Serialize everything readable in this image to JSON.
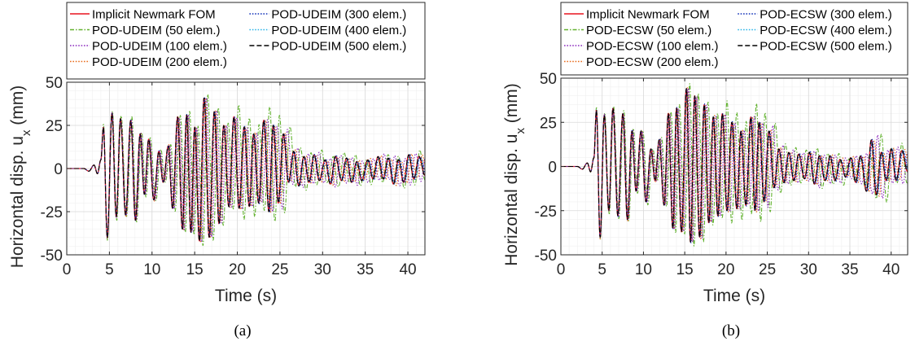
{
  "figure": {
    "ylabel_main": "Horizontal disp. u",
    "ylabel_sub": "x",
    "ylabel_unit": " (mm)",
    "xlabel": "Time (s)",
    "captions": [
      "(a)",
      "(b)"
    ]
  },
  "chart_data": [
    {
      "type": "line",
      "caption": "(a)",
      "xlabel": "Time (s)",
      "ylabel": "Horizontal disp. u_x (mm)",
      "xlim": [
        0,
        42
      ],
      "ylim": [
        -50,
        50
      ],
      "xticks": [
        "0",
        "5",
        "10",
        "15",
        "20",
        "25",
        "30",
        "35",
        "40"
      ],
      "yticks": [
        "50",
        "25",
        "0",
        "-25",
        "-50"
      ],
      "grid": true,
      "legend_position": "top",
      "series": [
        {
          "name": "Implicit Newmark FOM",
          "color": "#e8141e",
          "dash": "solid",
          "variant": "ref"
        },
        {
          "name": "POD-UDEIM (50 elem.)",
          "color": "#62b22f",
          "dash": "dashdot",
          "variant": "v50"
        },
        {
          "name": "POD-UDEIM (100 elem.)",
          "color": "#8c2bbd",
          "dash": "dotted",
          "variant": "v100"
        },
        {
          "name": "POD-UDEIM (200 elem.)",
          "color": "#e86a1a",
          "dash": "dotted",
          "variant": "v200"
        },
        {
          "name": "POD-UDEIM (300 elem.)",
          "color": "#1030b8",
          "dash": "dotted",
          "variant": "v300"
        },
        {
          "name": "POD-UDEIM (400 elem.)",
          "color": "#2cb4e8",
          "dash": "dotted",
          "variant": "v400"
        },
        {
          "name": "POD-UDEIM (500 elem.)",
          "color": "#000000",
          "dash": "dashed",
          "variant": "v500"
        }
      ],
      "keypoints": [
        [
          0,
          0
        ],
        [
          2.0,
          0
        ],
        [
          2.6,
          -1.5
        ],
        [
          3.2,
          2
        ],
        [
          3.6,
          -3
        ],
        [
          4.0,
          5
        ],
        [
          4.3,
          24
        ],
        [
          4.75,
          -40
        ],
        [
          5.3,
          32
        ],
        [
          5.8,
          -28
        ],
        [
          6.3,
          29
        ],
        [
          6.9,
          -27
        ],
        [
          7.5,
          28
        ],
        [
          8.05,
          -30
        ],
        [
          8.6,
          20
        ],
        [
          9.1,
          -15
        ],
        [
          9.6,
          17
        ],
        [
          10.2,
          -18
        ],
        [
          10.8,
          10
        ],
        [
          11.3,
          -8
        ],
        [
          11.9,
          13
        ],
        [
          12.4,
          -23
        ],
        [
          13.0,
          30
        ],
        [
          13.55,
          -35
        ],
        [
          14.05,
          31
        ],
        [
          14.55,
          -37
        ],
        [
          15.0,
          24
        ],
        [
          15.55,
          -42
        ],
        [
          16.1,
          41
        ],
        [
          16.7,
          -40
        ],
        [
          17.3,
          33
        ],
        [
          17.85,
          -32
        ],
        [
          18.4,
          25
        ],
        [
          19.0,
          -22
        ],
        [
          19.6,
          30
        ],
        [
          20.2,
          -23
        ],
        [
          20.8,
          24
        ],
        [
          21.4,
          -22
        ],
        [
          21.9,
          20
        ],
        [
          22.5,
          -20
        ],
        [
          23.1,
          28
        ],
        [
          23.7,
          -25
        ],
        [
          24.2,
          25
        ],
        [
          24.8,
          -20
        ],
        [
          25.4,
          20
        ],
        [
          26.0,
          -8
        ],
        [
          26.6,
          10
        ],
        [
          27.2,
          -10
        ],
        [
          27.8,
          7
        ],
        [
          28.4,
          -8
        ],
        [
          29.0,
          8
        ],
        [
          29.6,
          -7
        ],
        [
          30.3,
          5
        ],
        [
          30.9,
          -9
        ],
        [
          31.5,
          7
        ],
        [
          32.2,
          -7
        ],
        [
          32.8,
          6
        ],
        [
          33.4,
          -8
        ],
        [
          34.0,
          4
        ],
        [
          34.6,
          -7
        ],
        [
          35.3,
          5
        ],
        [
          35.9,
          -6
        ],
        [
          36.5,
          7
        ],
        [
          37.1,
          -6
        ],
        [
          37.7,
          6
        ],
        [
          38.3,
          -9
        ],
        [
          38.9,
          5
        ],
        [
          39.5,
          -8
        ],
        [
          40.1,
          8
        ],
        [
          40.7,
          -6
        ],
        [
          41.3,
          7
        ],
        [
          42,
          -4
        ]
      ]
    },
    {
      "type": "line",
      "caption": "(b)",
      "xlabel": "Time (s)",
      "ylabel": "Horizontal disp. u_x (mm)",
      "xlim": [
        0,
        42
      ],
      "ylim": [
        -50,
        50
      ],
      "xticks": [
        "0",
        "5",
        "10",
        "15",
        "20",
        "25",
        "30",
        "35",
        "40"
      ],
      "yticks": [
        "50",
        "25",
        "0",
        "-25",
        "-50"
      ],
      "grid": true,
      "legend_position": "top",
      "series": [
        {
          "name": "Implicit Newmark FOM",
          "color": "#e8141e",
          "dash": "solid",
          "variant": "ref"
        },
        {
          "name": "POD-ECSW (50 elem.)",
          "color": "#62b22f",
          "dash": "dashdot",
          "variant": "v50"
        },
        {
          "name": "POD-ECSW (100 elem.)",
          "color": "#8c2bbd",
          "dash": "dotted",
          "variant": "v100"
        },
        {
          "name": "POD-ECSW (200 elem.)",
          "color": "#e86a1a",
          "dash": "dotted",
          "variant": "v200"
        },
        {
          "name": "POD-ECSW (300 elem.)",
          "color": "#1030b8",
          "dash": "dotted",
          "variant": "v300"
        },
        {
          "name": "POD-ECSW (400 elem.)",
          "color": "#2cb4e8",
          "dash": "dotted",
          "variant": "v400"
        },
        {
          "name": "POD-ECSW (500 elem.)",
          "color": "#000000",
          "dash": "dashed",
          "variant": "v500"
        }
      ],
      "keypoints": [
        [
          0,
          0
        ],
        [
          2.0,
          0
        ],
        [
          2.6,
          -1.5
        ],
        [
          3.2,
          2
        ],
        [
          3.6,
          -3
        ],
        [
          4.0,
          5
        ],
        [
          4.3,
          32
        ],
        [
          4.75,
          -40
        ],
        [
          5.25,
          29
        ],
        [
          5.8,
          -25
        ],
        [
          6.3,
          33
        ],
        [
          6.9,
          -28
        ],
        [
          7.5,
          30
        ],
        [
          8.05,
          -30
        ],
        [
          8.6,
          20
        ],
        [
          9.1,
          -14
        ],
        [
          9.7,
          20
        ],
        [
          10.3,
          -20
        ],
        [
          10.9,
          10
        ],
        [
          11.4,
          -8
        ],
        [
          11.9,
          15
        ],
        [
          12.5,
          -22
        ],
        [
          13.0,
          30
        ],
        [
          13.55,
          -35
        ],
        [
          14.0,
          33
        ],
        [
          14.6,
          -37
        ],
        [
          15.2,
          44
        ],
        [
          15.7,
          -43
        ],
        [
          16.2,
          40
        ],
        [
          16.8,
          -40
        ],
        [
          17.35,
          35
        ],
        [
          17.9,
          -32
        ],
        [
          18.45,
          28
        ],
        [
          19.0,
          -28
        ],
        [
          19.55,
          30
        ],
        [
          20.1,
          -25
        ],
        [
          20.7,
          25
        ],
        [
          21.3,
          -24
        ],
        [
          21.8,
          20
        ],
        [
          22.4,
          -22
        ],
        [
          23.0,
          28
        ],
        [
          23.5,
          -25
        ],
        [
          24.0,
          25
        ],
        [
          24.6,
          -20
        ],
        [
          25.2,
          20
        ],
        [
          25.8,
          -12
        ],
        [
          26.4,
          10
        ],
        [
          27.0,
          -9
        ],
        [
          27.6,
          8
        ],
        [
          28.2,
          -8
        ],
        [
          28.8,
          7
        ],
        [
          29.5,
          -7
        ],
        [
          30.1,
          8
        ],
        [
          30.7,
          -10
        ],
        [
          31.3,
          6
        ],
        [
          32.0,
          -8
        ],
        [
          32.6,
          6
        ],
        [
          33.2,
          -8
        ],
        [
          33.8,
          4
        ],
        [
          34.5,
          -6
        ],
        [
          35.1,
          5
        ],
        [
          35.7,
          -9
        ],
        [
          36.3,
          6
        ],
        [
          37.0,
          -14
        ],
        [
          37.6,
          15
        ],
        [
          38.2,
          -16
        ],
        [
          38.8,
          8
        ],
        [
          39.4,
          -8
        ],
        [
          40.0,
          10
        ],
        [
          40.6,
          -8
        ],
        [
          41.3,
          9
        ],
        [
          42,
          -3
        ]
      ]
    }
  ]
}
